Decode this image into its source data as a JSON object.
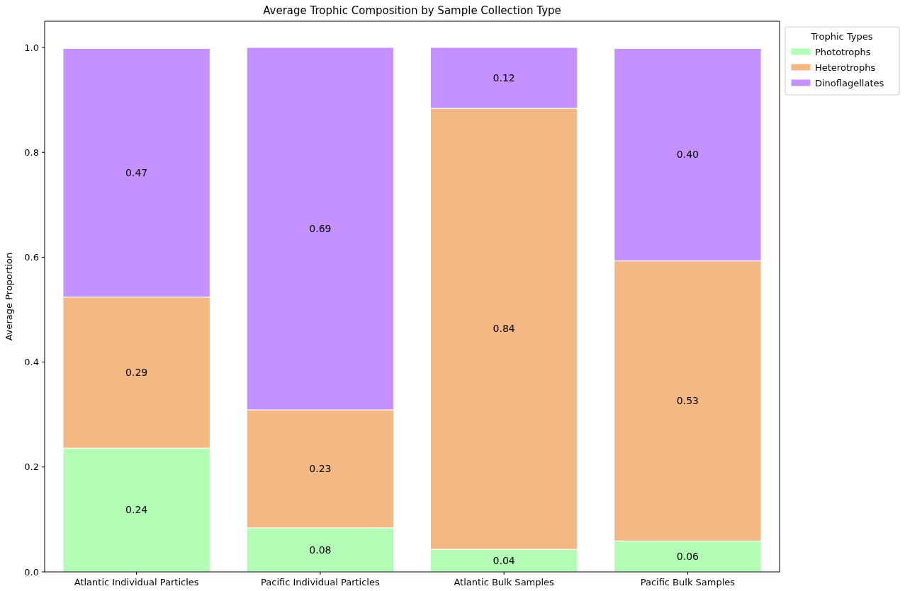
{
  "chart_data": {
    "type": "bar",
    "title": "Average Trophic Composition by Sample Collection Type",
    "ylabel": "Average Proportion",
    "legend_title": "Trophic Types",
    "categories": [
      "Atlantic Individual Particles",
      "Pacific Individual Particles",
      "Atlantic Bulk Samples",
      "Pacific Bulk Samples"
    ],
    "stacked": true,
    "series": [
      {
        "name": "Phototrophs",
        "color": "#b3fcb5",
        "values": [
          0.236,
          0.084,
          0.043,
          0.059
        ],
        "value_labels": [
          "0.24",
          "0.08",
          "0.04",
          "0.06"
        ]
      },
      {
        "name": "Heterotrophs",
        "color": "#f4b884",
        "values": [
          0.288,
          0.225,
          0.841,
          0.534
        ],
        "value_labels": [
          "0.29",
          "0.23",
          "0.84",
          "0.53"
        ]
      },
      {
        "name": "Dinoflagellates",
        "color": "#c491ff",
        "values": [
          0.474,
          0.691,
          0.116,
          0.405
        ],
        "value_labels": [
          "0.47",
          "0.69",
          "0.12",
          "0.40"
        ]
      }
    ],
    "ylim": [
      0,
      1.05
    ],
    "yticks": [
      {
        "value": 0,
        "label": "0.0"
      },
      {
        "value": 0.2,
        "label": "0.2"
      },
      {
        "value": 0.4,
        "label": "0.4"
      },
      {
        "value": 0.6,
        "label": "0.6"
      },
      {
        "value": 0.8,
        "label": "0.8"
      },
      {
        "value": 1,
        "label": "1.0"
      }
    ],
    "grid": false,
    "legend": "top right"
  }
}
